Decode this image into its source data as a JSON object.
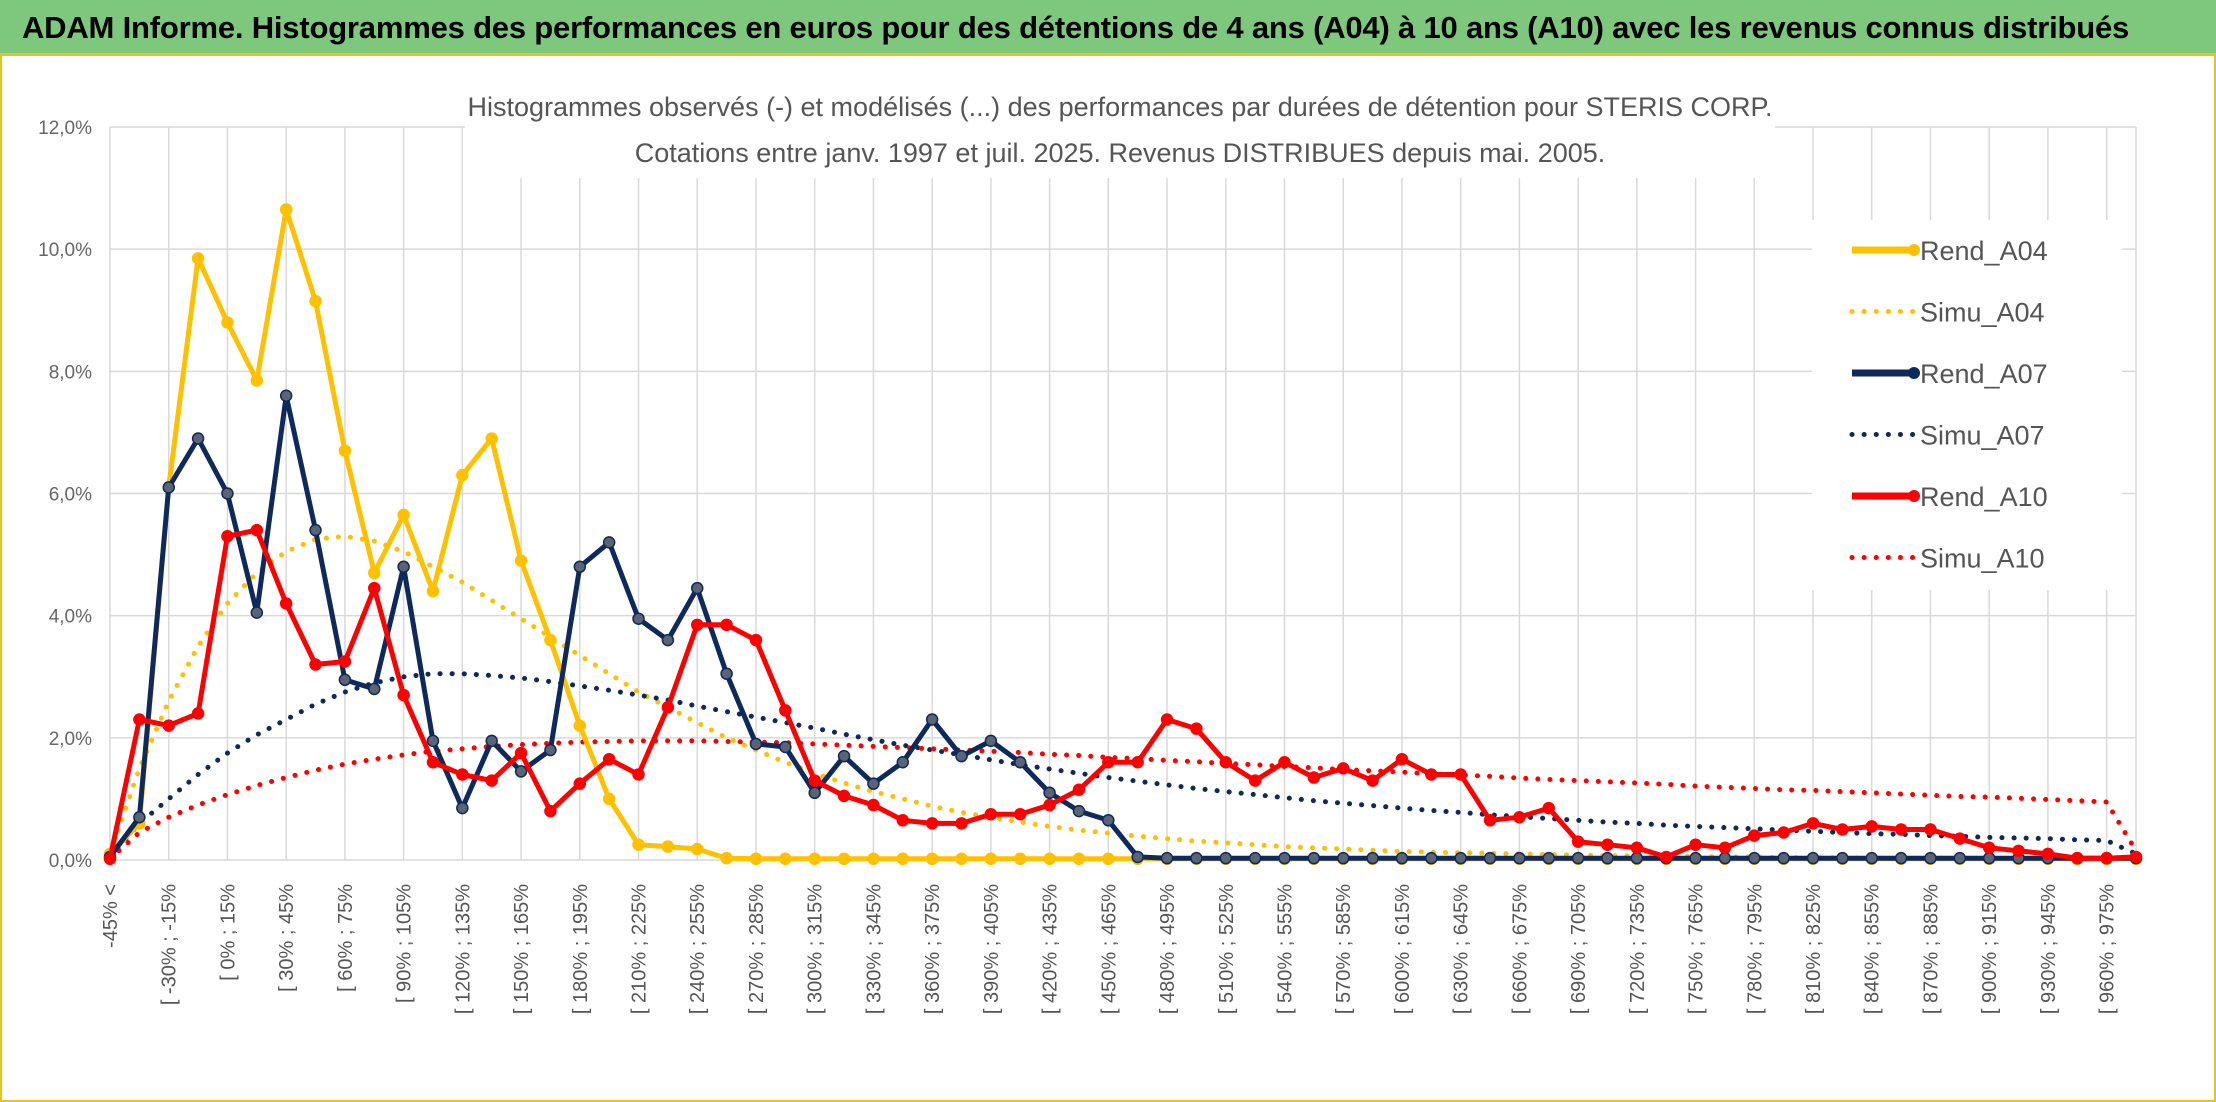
{
  "banner": {
    "title": "ADAM Informe. Histogrammes des performances en euros pour des détentions de 4 ans (A04) à 10 ans (A10) avec les revenus connus distribués"
  },
  "chart_data": {
    "type": "line",
    "title": "Histogrammes observés (-) et modélisés (...) des performances par durées de détention pour STERIS CORP.",
    "subtitle": "Cotations entre janv. 1997 et juil. 2025. Revenus DISTRIBUES depuis mai. 2005.",
    "xlabel": "",
    "ylabel": "",
    "ylim": [
      0,
      12
    ],
    "yticks": [
      "0,0%",
      "2,0%",
      "4,0%",
      "6,0%",
      "8,0%",
      "10,0%",
      "12,0%"
    ],
    "grid": true,
    "legend_position": "right",
    "x_labels": [
      "-45% <",
      "[ -30% ; -15%",
      "[ 0% ; 15%",
      "[ 30% ; 45%",
      "[ 60% ; 75%",
      "[ 90% ; 105%",
      "[ 120% ; 135%",
      "[ 150% ; 165%",
      "[ 180% ; 195%",
      "[ 210% ; 225%",
      "[ 240% ; 255%",
      "[ 270% ; 285%",
      "[ 300% ; 315%",
      "[ 330% ; 345%",
      "[ 360% ; 375%",
      "[ 390% ; 405%",
      "[ 420% ; 435%",
      "[ 450% ; 465%",
      "[ 480% ; 495%",
      "[ 510% ; 525%",
      "[ 540% ; 555%",
      "[ 570% ; 585%",
      "[ 600% ; 615%",
      "[ 630% ; 645%",
      "[ 660% ; 675%",
      "[ 690% ; 705%",
      "[ 720% ; 735%",
      "[ 750% ; 765%",
      "[ 780% ; 795%",
      "[ 810% ; 825%",
      "[ 840% ; 855%",
      "[ 870% ; 885%",
      "[ 900% ; 915%",
      "[ 930% ; 945%",
      "[ 960% ; 975%"
    ],
    "series": [
      {
        "name": "Rend_A04",
        "style": "solid",
        "color": "#ffc000",
        "values": [
          0.1,
          0.6,
          6.1,
          9.85,
          8.8,
          7.85,
          10.65,
          9.15,
          6.7,
          4.7,
          5.65,
          4.4,
          6.3,
          6.9,
          4.9,
          3.6,
          2.2,
          1.0,
          0.25,
          0.22,
          0.18,
          0.03,
          0.02,
          0.02,
          0.02,
          0.02,
          0.02,
          0.02,
          0.02,
          0.02,
          0.02,
          0.02,
          0.02,
          0.02,
          0.02,
          0.02,
          0.02,
          0.02,
          0.02,
          0.02,
          0.02,
          0.02,
          0.02,
          0.02,
          0.02,
          0.02,
          0.02,
          0.02,
          0.02,
          0.02,
          0.02,
          0.02,
          0.02,
          0.02,
          0.02,
          0.02,
          0.02,
          0.02,
          0.02,
          0.02,
          0.02,
          0.02,
          0.02,
          0.02,
          0.02,
          0.02,
          0.02,
          0.02,
          0.02,
          0.02
        ]
      },
      {
        "name": "Simu_A04",
        "style": "dotted",
        "color": "#ffc000",
        "values": [
          0.1,
          1.5,
          2.6,
          3.5,
          4.2,
          4.7,
          5.05,
          5.25,
          5.3,
          5.22,
          5.05,
          4.8,
          4.55,
          4.25,
          3.95,
          3.65,
          3.35,
          3.05,
          2.75,
          2.5,
          2.25,
          2.0,
          1.8,
          1.6,
          1.42,
          1.26,
          1.12,
          1.0,
          0.88,
          0.78,
          0.7,
          0.62,
          0.55,
          0.49,
          0.44,
          0.39,
          0.35,
          0.31,
          0.28,
          0.25,
          0.22,
          0.2,
          0.18,
          0.16,
          0.14,
          0.13,
          0.12,
          0.11,
          0.1,
          0.09,
          0.08,
          0.07,
          0.07,
          0.06,
          0.06,
          0.05,
          0.05,
          0.04,
          0.04,
          0.04,
          0.03,
          0.03,
          0.03,
          0.03,
          0.02,
          0.02,
          0.02,
          0.02,
          0.02,
          0.02
        ]
      },
      {
        "name": "Rend_A07",
        "style": "solid",
        "color": "#0e2a5c",
        "values": [
          0.05,
          0.7,
          6.1,
          6.9,
          6.0,
          4.05,
          7.6,
          5.4,
          2.95,
          2.8,
          4.8,
          1.95,
          0.85,
          1.95,
          1.45,
          1.8,
          4.8,
          5.2,
          3.95,
          3.6,
          4.45,
          3.05,
          1.9,
          1.85,
          1.1,
          1.7,
          1.25,
          1.6,
          2.3,
          1.7,
          1.95,
          1.6,
          1.1,
          0.8,
          0.65,
          0.05,
          0.03,
          0.03,
          0.03,
          0.03,
          0.03,
          0.03,
          0.03,
          0.03,
          0.03,
          0.03,
          0.03,
          0.03,
          0.03,
          0.03,
          0.03,
          0.03,
          0.03,
          0.03,
          0.03,
          0.03,
          0.03,
          0.03,
          0.03,
          0.03,
          0.03,
          0.03,
          0.03,
          0.03,
          0.03,
          0.03,
          0.03,
          0.03,
          0.03,
          0.03
        ]
      },
      {
        "name": "Simu_A07",
        "style": "dotted",
        "color": "#0e2a5c",
        "values": [
          0.05,
          0.6,
          1.0,
          1.4,
          1.75,
          2.05,
          2.3,
          2.55,
          2.75,
          2.9,
          3.0,
          3.05,
          3.05,
          3.02,
          2.98,
          2.92,
          2.85,
          2.78,
          2.7,
          2.62,
          2.52,
          2.43,
          2.34,
          2.25,
          2.16,
          2.06,
          1.97,
          1.88,
          1.8,
          1.72,
          1.64,
          1.56,
          1.49,
          1.42,
          1.35,
          1.29,
          1.23,
          1.17,
          1.12,
          1.07,
          1.02,
          0.97,
          0.93,
          0.89,
          0.85,
          0.81,
          0.78,
          0.74,
          0.71,
          0.68,
          0.65,
          0.62,
          0.6,
          0.57,
          0.55,
          0.53,
          0.51,
          0.49,
          0.47,
          0.45,
          0.43,
          0.42,
          0.4,
          0.39,
          0.37,
          0.36,
          0.35,
          0.33,
          0.32,
          0.1
        ]
      },
      {
        "name": "Rend_A10",
        "style": "solid",
        "color": "#ff0000",
        "values": [
          0.02,
          2.3,
          2.2,
          2.4,
          5.3,
          5.4,
          4.2,
          3.2,
          3.25,
          4.45,
          2.7,
          1.6,
          1.4,
          1.3,
          1.75,
          0.8,
          1.25,
          1.65,
          1.4,
          2.5,
          3.85,
          3.85,
          3.6,
          2.45,
          1.3,
          1.05,
          0.9,
          0.65,
          0.6,
          0.6,
          0.75,
          0.75,
          0.9,
          1.15,
          1.6,
          1.6,
          2.3,
          2.15,
          1.6,
          1.3,
          1.6,
          1.35,
          1.5,
          1.3,
          1.65,
          1.4,
          1.4,
          0.65,
          0.7,
          0.85,
          0.3,
          0.25,
          0.2,
          0.05,
          0.25,
          0.2,
          0.4,
          0.45,
          0.6,
          0.5,
          0.55,
          0.5,
          0.5,
          0.35,
          0.2,
          0.15,
          0.1,
          0.03,
          0.03,
          0.05
        ]
      },
      {
        "name": "Simu_A10",
        "style": "dotted",
        "color": "#ff0000",
        "values": [
          0.02,
          0.45,
          0.7,
          0.9,
          1.07,
          1.22,
          1.35,
          1.47,
          1.57,
          1.65,
          1.72,
          1.78,
          1.82,
          1.86,
          1.89,
          1.91,
          1.93,
          1.94,
          1.95,
          1.95,
          1.95,
          1.94,
          1.93,
          1.92,
          1.9,
          1.88,
          1.86,
          1.84,
          1.82,
          1.8,
          1.78,
          1.76,
          1.73,
          1.71,
          1.68,
          1.66,
          1.63,
          1.61,
          1.58,
          1.56,
          1.53,
          1.51,
          1.48,
          1.46,
          1.44,
          1.41,
          1.39,
          1.37,
          1.34,
          1.32,
          1.3,
          1.28,
          1.26,
          1.24,
          1.21,
          1.19,
          1.17,
          1.15,
          1.14,
          1.12,
          1.1,
          1.08,
          1.06,
          1.04,
          1.03,
          1.01,
          0.99,
          0.97,
          0.95,
          0.15
        ]
      }
    ]
  }
}
